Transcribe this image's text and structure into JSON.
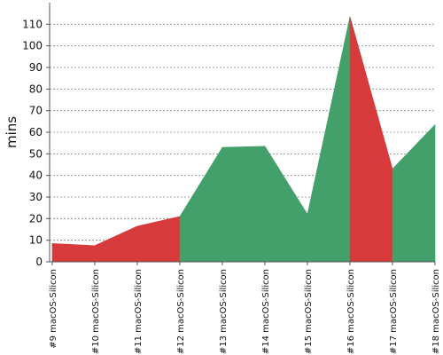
{
  "chart_data": {
    "type": "area",
    "title": "",
    "xlabel": "",
    "ylabel": "mins",
    "ylim": [
      0,
      120
    ],
    "yticks": [
      0,
      10,
      20,
      30,
      40,
      50,
      60,
      70,
      80,
      90,
      100,
      110
    ],
    "grid": true,
    "legend": "none",
    "categories": [
      "#9 macOS-Silicon",
      "#10 macOS-Silicon",
      "#11 macOS-Silicon",
      "#12 macOS-Silicon",
      "#13 macOS-Silicon",
      "#14 macOS-Silicon",
      "#15 macOS-Silicon",
      "#16 macOS-Silicon",
      "#17 macOS-Silicon",
      "#18 macOS-Silicon"
    ],
    "values": [
      8.5,
      7.5,
      16.5,
      21,
      53,
      53.5,
      22,
      113.5,
      43,
      63.5
    ],
    "colors": {
      "success": "#43a06b",
      "failure": "#d73a3a"
    },
    "point_status": [
      "failure",
      "failure",
      "failure",
      "success",
      "success",
      "success",
      "success",
      "failure",
      "success",
      "success"
    ]
  }
}
